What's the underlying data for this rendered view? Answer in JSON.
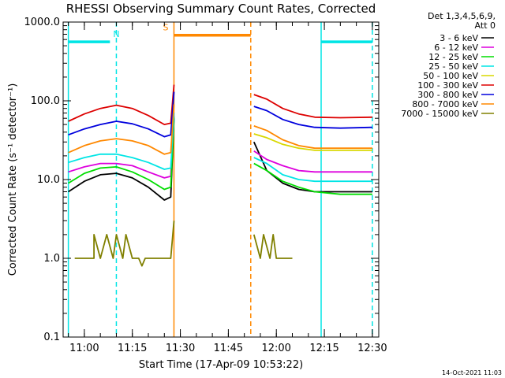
{
  "chart_data": {
    "type": "line",
    "title": "RHESSI Observing Summary Count Rates, Corrected",
    "xlabel": "Start Time (17-Apr-09 10:53:22)",
    "ylabel": "Corrected Count Rate (s⁻¹ detector⁻¹)",
    "y_scale": "log",
    "ylim": [
      0.1,
      1000
    ],
    "xlim": [
      "10:53:22",
      "12:32:00"
    ],
    "y_ticks": [
      {
        "v": 0.1,
        "label": "0.1"
      },
      {
        "v": 1,
        "label": "1.0"
      },
      {
        "v": 10,
        "label": "10.0"
      },
      {
        "v": 100,
        "label": "100.0"
      },
      {
        "v": 1000,
        "label": "1000.0"
      }
    ],
    "x_ticks": [
      {
        "t": "11:00",
        "label": "11:00"
      },
      {
        "t": "11:15",
        "label": "11:15"
      },
      {
        "t": "11:30",
        "label": "11:30"
      },
      {
        "t": "11:45",
        "label": "11:45"
      },
      {
        "t": "12:00",
        "label": "12:00"
      },
      {
        "t": "12:15",
        "label": "12:15"
      },
      {
        "t": "12:30",
        "label": "12:30"
      }
    ],
    "legend_header": [
      "Det 1,3,4,5,6,9,",
      "Att 0"
    ],
    "legend_placement": "right",
    "series": [
      {
        "name": "3 - 6 keV",
        "color": "#000000",
        "points": [
          [
            "10:55",
            7.0
          ],
          [
            "11:00",
            9.5
          ],
          [
            "11:05",
            11.5
          ],
          [
            "11:10",
            12.0
          ],
          [
            "11:15",
            10.5
          ],
          [
            "11:20",
            8.0
          ],
          [
            "11:25",
            5.5
          ],
          [
            "11:27",
            6.0
          ],
          [
            "11:28",
            60.0
          ],
          [
            "11:53",
            30.0
          ],
          [
            "11:57",
            13.0
          ],
          [
            "12:02",
            9.0
          ],
          [
            "12:07",
            7.5
          ],
          [
            "12:12",
            7.0
          ],
          [
            "12:20",
            7.0
          ],
          [
            "12:30",
            7.0
          ]
        ]
      },
      {
        "name": "6 - 12 keV",
        "color": "#dd00dd",
        "points": [
          [
            "10:55",
            12.5
          ],
          [
            "11:00",
            14.5
          ],
          [
            "11:05",
            16.0
          ],
          [
            "11:10",
            16.0
          ],
          [
            "11:15",
            15.0
          ],
          [
            "11:20",
            12.5
          ],
          [
            "11:25",
            10.5
          ],
          [
            "11:27",
            11.0
          ],
          [
            "11:28",
            65.0
          ],
          [
            "11:53",
            23.0
          ],
          [
            "11:57",
            18.0
          ],
          [
            "12:02",
            15.0
          ],
          [
            "12:07",
            13.0
          ],
          [
            "12:12",
            12.5
          ],
          [
            "12:20",
            12.5
          ],
          [
            "12:30",
            12.5
          ]
        ]
      },
      {
        "name": "12 - 25 keV",
        "color": "#00dd00",
        "points": [
          [
            "10:55",
            9.0
          ],
          [
            "11:00",
            12.0
          ],
          [
            "11:05",
            14.0
          ],
          [
            "11:10",
            14.5
          ],
          [
            "11:15",
            12.5
          ],
          [
            "11:20",
            10.0
          ],
          [
            "11:25",
            7.5
          ],
          [
            "11:27",
            8.0
          ],
          [
            "11:28",
            62.0
          ],
          [
            "11:53",
            16.0
          ],
          [
            "11:57",
            13.0
          ],
          [
            "12:02",
            9.5
          ],
          [
            "12:07",
            8.0
          ],
          [
            "12:12",
            7.0
          ],
          [
            "12:20",
            6.5
          ],
          [
            "12:30",
            6.5
          ]
        ]
      },
      {
        "name": "25 - 50 keV",
        "color": "#00e5e5",
        "points": [
          [
            "10:55",
            16.5
          ],
          [
            "11:00",
            19.0
          ],
          [
            "11:05",
            21.0
          ],
          [
            "11:10",
            21.0
          ],
          [
            "11:15",
            19.0
          ],
          [
            "11:20",
            16.5
          ],
          [
            "11:25",
            13.5
          ],
          [
            "11:27",
            14.0
          ],
          [
            "11:28",
            70.0
          ],
          [
            "11:53",
            19.0
          ],
          [
            "11:57",
            16.0
          ],
          [
            "12:02",
            11.5
          ],
          [
            "12:07",
            10.0
          ],
          [
            "12:12",
            9.5
          ],
          [
            "12:20",
            9.5
          ],
          [
            "12:30",
            9.5
          ]
        ]
      },
      {
        "name": "50 - 100 keV",
        "color": "#d8d800",
        "points": [
          [
            "11:53",
            38.0
          ],
          [
            "11:57",
            34.0
          ],
          [
            "12:02",
            28.0
          ],
          [
            "12:07",
            25.0
          ],
          [
            "12:12",
            23.5
          ],
          [
            "12:20",
            23.5
          ],
          [
            "12:30",
            23.5
          ]
        ]
      },
      {
        "name": "100 - 300 keV",
        "color": "#dd0000",
        "points": [
          [
            "10:55",
            55.0
          ],
          [
            "11:00",
            68.0
          ],
          [
            "11:05",
            80.0
          ],
          [
            "11:10",
            88.0
          ],
          [
            "11:15",
            80.0
          ],
          [
            "11:20",
            65.0
          ],
          [
            "11:25",
            50.0
          ],
          [
            "11:27",
            52.0
          ],
          [
            "11:28",
            160.0
          ],
          [
            "11:53",
            120.0
          ],
          [
            "11:57",
            105.0
          ],
          [
            "12:02",
            80.0
          ],
          [
            "12:07",
            68.0
          ],
          [
            "12:12",
            62.0
          ],
          [
            "12:20",
            61.0
          ],
          [
            "12:30",
            62.0
          ]
        ]
      },
      {
        "name": "300 - 800 keV",
        "color": "#0000dd",
        "points": [
          [
            "10:55",
            37.0
          ],
          [
            "11:00",
            44.0
          ],
          [
            "11:05",
            50.0
          ],
          [
            "11:10",
            55.0
          ],
          [
            "11:15",
            51.0
          ],
          [
            "11:20",
            44.0
          ],
          [
            "11:25",
            35.0
          ],
          [
            "11:27",
            37.0
          ],
          [
            "11:28",
            130.0
          ],
          [
            "11:53",
            85.0
          ],
          [
            "11:57",
            75.0
          ],
          [
            "12:02",
            58.0
          ],
          [
            "12:07",
            50.0
          ],
          [
            "12:12",
            46.0
          ],
          [
            "12:20",
            45.0
          ],
          [
            "12:30",
            46.0
          ]
        ]
      },
      {
        "name": "800 - 7000 keV",
        "color": "#ff8800",
        "points": [
          [
            "10:55",
            22.0
          ],
          [
            "11:00",
            27.0
          ],
          [
            "11:05",
            31.0
          ],
          [
            "11:10",
            33.0
          ],
          [
            "11:15",
            31.0
          ],
          [
            "11:20",
            27.0
          ],
          [
            "11:25",
            21.0
          ],
          [
            "11:27",
            22.0
          ],
          [
            "11:28",
            90.0
          ],
          [
            "11:53",
            48.0
          ],
          [
            "11:57",
            42.0
          ],
          [
            "12:02",
            32.0
          ],
          [
            "12:07",
            27.0
          ],
          [
            "12:12",
            25.0
          ],
          [
            "12:20",
            25.0
          ],
          [
            "12:30",
            25.0
          ]
        ]
      },
      {
        "name": "7000 - 15000 keV",
        "color": "#808000",
        "points": [
          [
            "10:57",
            1.0
          ],
          [
            "11:03",
            1.0
          ],
          [
            "11:03",
            2.0
          ],
          [
            "11:05",
            1.0
          ],
          [
            "11:07",
            2.0
          ],
          [
            "11:09",
            1.0
          ],
          [
            "11:10",
            2.0
          ],
          [
            "11:12",
            1.0
          ],
          [
            "11:13",
            2.0
          ],
          [
            "11:15",
            1.0
          ],
          [
            "11:16",
            1.0
          ],
          [
            "11:17",
            1.0
          ],
          [
            "11:18",
            0.8
          ],
          [
            "11:19",
            1.0
          ],
          [
            "11:20",
            1.0
          ],
          [
            "11:27",
            1.0
          ],
          [
            "11:28",
            3.0
          ],
          [
            "11:53",
            2.0
          ],
          [
            "11:55",
            1.0
          ],
          [
            "11:56",
            2.0
          ],
          [
            "11:58",
            1.0
          ],
          [
            "11:59",
            2.0
          ],
          [
            "12:00",
            1.0
          ],
          [
            "12:05",
            1.0
          ]
        ]
      }
    ],
    "markers": [
      {
        "type": "bar",
        "label": "N",
        "color": "#00e5e5",
        "start": "10:55",
        "end": "11:08",
        "level": 560
      },
      {
        "type": "bar",
        "label": "",
        "color": "#00e5e5",
        "start": "12:14",
        "end": "12:30",
        "level": 560
      },
      {
        "type": "bar",
        "label": "S",
        "color": "#ff8800",
        "start": "11:28",
        "end": "11:52",
        "level": 680
      },
      {
        "type": "vline",
        "color": "#00e5e5",
        "style": "solid",
        "t": "10:55"
      },
      {
        "type": "vline",
        "color": "#00e5e5",
        "style": "dashed",
        "t": "11:10"
      },
      {
        "type": "vline",
        "color": "#ff8800",
        "style": "solid",
        "t": "11:28"
      },
      {
        "type": "vline",
        "color": "#ff8800",
        "style": "dashed",
        "t": "11:52"
      },
      {
        "type": "vline",
        "color": "#00e5e5",
        "style": "solid",
        "t": "12:14"
      },
      {
        "type": "vline",
        "color": "#00e5e5",
        "style": "dashed",
        "t": "12:30"
      }
    ],
    "footer_date": "14-Oct-2021 11:03"
  }
}
